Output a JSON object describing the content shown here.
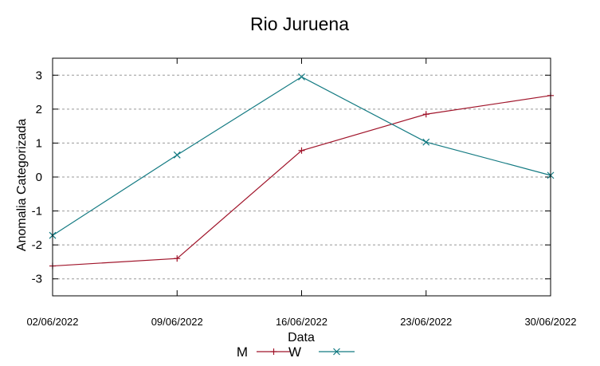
{
  "chart_data": {
    "type": "line",
    "title": "Rio Juruena",
    "xlabel": "Data",
    "ylabel": "Anomalia Categorizada",
    "x": [
      "02/06/2022",
      "09/06/2022",
      "16/06/2022",
      "23/06/2022",
      "30/06/2022"
    ],
    "ylim": [
      -3.5,
      3.5
    ],
    "yticks": [
      -3,
      -2,
      -1,
      0,
      1,
      2,
      3
    ],
    "grid": "horizontal dashed",
    "legend_position": "bottom-center",
    "series": [
      {
        "name": "M",
        "color": "#a0142a",
        "marker": "plus",
        "values": [
          -2.62,
          -2.4,
          0.78,
          1.85,
          2.4
        ]
      },
      {
        "name": "W",
        "color": "#137a82",
        "marker": "cross",
        "values": [
          -1.72,
          0.65,
          2.95,
          1.03,
          0.05
        ]
      }
    ]
  }
}
